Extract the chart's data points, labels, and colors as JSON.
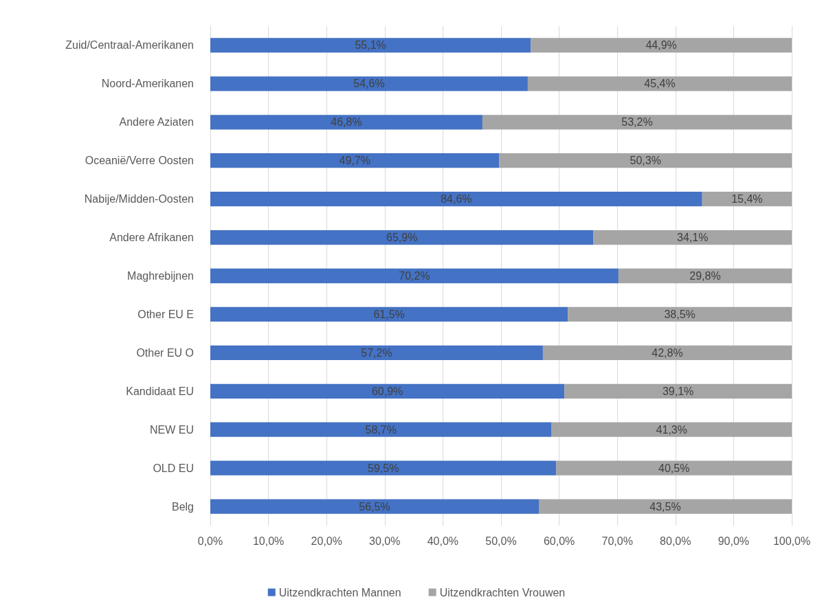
{
  "chart_data": {
    "type": "bar",
    "orientation": "horizontal",
    "stacked": true,
    "categories": [
      "Zuid/Centraal-Amerikanen",
      "Noord-Amerikanen",
      "Andere Aziaten",
      "Oceanië/Verre Oosten",
      "Nabije/Midden-Oosten",
      "Andere Afrikanen",
      "Maghrebijnen",
      "Other EU E",
      "Other EU O",
      "Kandidaat EU",
      "NEW EU",
      "OLD EU",
      "Belg"
    ],
    "series": [
      {
        "name": "Uitzendkrachten Mannen",
        "color": "#4472c4",
        "values": [
          55.1,
          54.6,
          46.8,
          49.7,
          84.6,
          65.9,
          70.2,
          61.5,
          57.2,
          60.9,
          58.7,
          59.5,
          56.5
        ],
        "value_labels": [
          "55,1%",
          "54,6%",
          "46,8%",
          "49,7%",
          "84,6%",
          "65,9%",
          "70,2%",
          "61,5%",
          "57,2%",
          "60,9%",
          "58,7%",
          "59,5%",
          "56,5%"
        ]
      },
      {
        "name": "Uitzendkrachten Vrouwen",
        "color": "#a5a5a5",
        "values": [
          44.9,
          45.4,
          53.2,
          50.3,
          15.4,
          34.1,
          29.8,
          38.5,
          42.8,
          39.1,
          41.3,
          40.5,
          43.5
        ],
        "value_labels": [
          "44,9%",
          "45,4%",
          "53,2%",
          "50,3%",
          "15,4%",
          "34,1%",
          "29,8%",
          "38,5%",
          "42,8%",
          "39,1%",
          "41,3%",
          "40,5%",
          "43,5%"
        ]
      }
    ],
    "xlim": [
      0,
      100
    ],
    "xticks": [
      {
        "value": 0,
        "label": "0,0%"
      },
      {
        "value": 10,
        "label": "10,0%"
      },
      {
        "value": 20,
        "label": "20,0%"
      },
      {
        "value": 30,
        "label": "30,0%"
      },
      {
        "value": 40,
        "label": "40,0%"
      },
      {
        "value": 50,
        "label": "50,0%"
      },
      {
        "value": 60,
        "label": "60,0%"
      },
      {
        "value": 70,
        "label": "70,0%"
      },
      {
        "value": 80,
        "label": "80,0%"
      },
      {
        "value": 90,
        "label": "90,0%"
      },
      {
        "value": 100,
        "label": "100,0%"
      }
    ],
    "grid": "x",
    "legend": "bottom"
  }
}
